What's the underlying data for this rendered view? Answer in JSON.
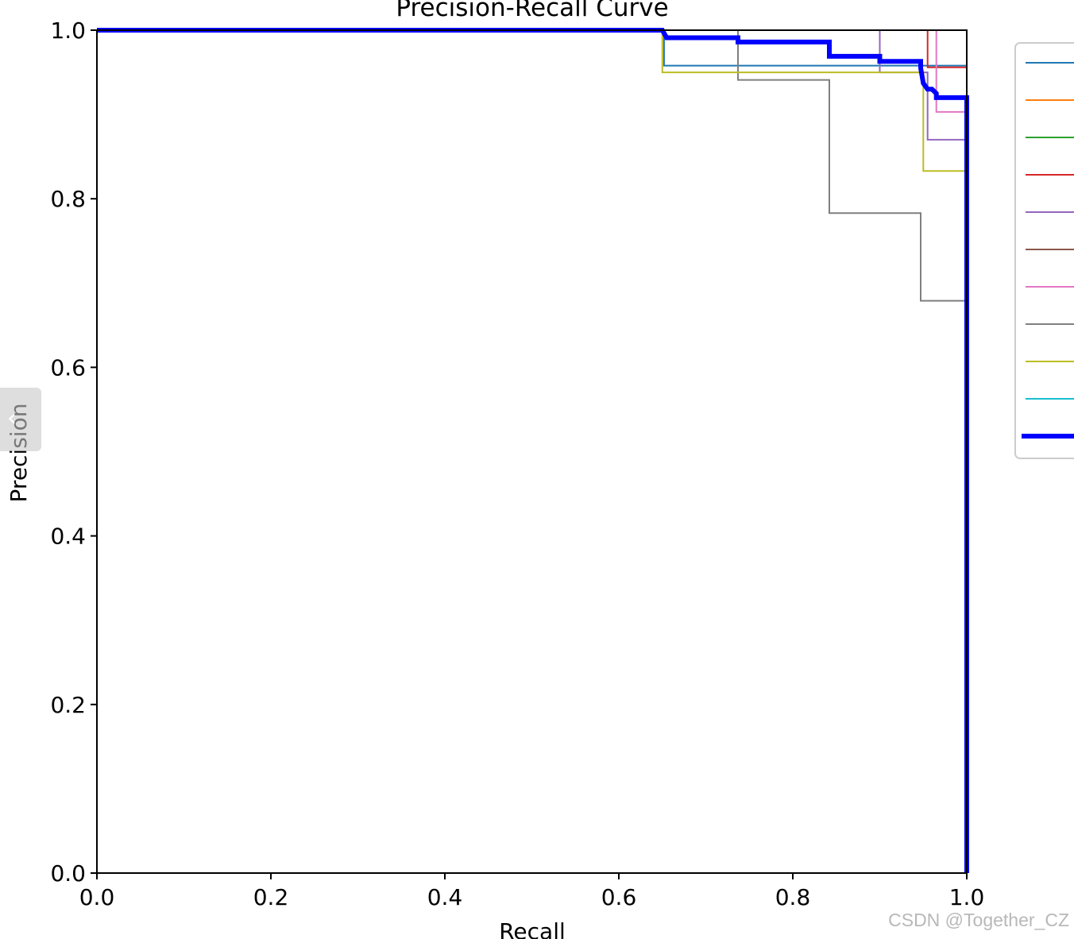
{
  "chart_data": {
    "type": "line",
    "title": "Precision-Recall Curve",
    "xlabel": "Recall",
    "ylabel": "Precision",
    "xlim": [
      0.0,
      1.0
    ],
    "ylim": [
      0.0,
      1.0
    ],
    "xticks": [
      "0.0",
      "0.2",
      "0.4",
      "0.6",
      "0.8",
      "1.0"
    ],
    "yticks": [
      "0.0",
      "0.2",
      "0.4",
      "0.6",
      "0.8",
      "1.0"
    ],
    "grid": false,
    "legend_placement": "right, partially cropped",
    "series": [
      {
        "color": "#1f77b4",
        "width": 2,
        "x": [
          0,
          0.652,
          0.652,
          1.0,
          1.0
        ],
        "y": [
          1.0,
          1.0,
          0.958,
          0.958,
          0.0
        ]
      },
      {
        "color": "#ff7f0e",
        "width": 2,
        "x": [
          0,
          1.0,
          1.0
        ],
        "y": [
          1.0,
          1.0,
          0.0
        ]
      },
      {
        "color": "#2ca02c",
        "width": 2,
        "x": [
          0,
          1.0,
          1.0
        ],
        "y": [
          1.0,
          1.0,
          0.0
        ]
      },
      {
        "color": "#d62728",
        "width": 2,
        "x": [
          0,
          0.955,
          0.955,
          1.0,
          1.0
        ],
        "y": [
          1.0,
          1.0,
          0.956,
          0.956,
          0.0
        ]
      },
      {
        "color": "#9467bd",
        "width": 2,
        "x": [
          0,
          0.9,
          0.9,
          0.955,
          0.955,
          1.0,
          1.0
        ],
        "y": [
          1.0,
          1.0,
          0.95,
          0.95,
          0.87,
          0.87,
          0.0
        ]
      },
      {
        "color": "#8c564b",
        "width": 2,
        "x": [
          0,
          1.0,
          1.0
        ],
        "y": [
          1.0,
          1.0,
          0.0
        ]
      },
      {
        "color": "#e377c2",
        "width": 2,
        "x": [
          0,
          0.965,
          0.965,
          1.0,
          1.0
        ],
        "y": [
          1.0,
          1.0,
          0.903,
          0.903,
          0.0
        ]
      },
      {
        "color": "#7f7f7f",
        "width": 2,
        "x": [
          0,
          0.737,
          0.737,
          0.842,
          0.842,
          0.947,
          0.947,
          1.0,
          1.0
        ],
        "y": [
          1.0,
          1.0,
          0.941,
          0.941,
          0.783,
          0.783,
          0.679,
          0.679,
          0.0
        ]
      },
      {
        "color": "#bcbd22",
        "width": 2,
        "x": [
          0,
          0.65,
          0.65,
          0.95,
          0.95,
          1.0,
          1.0
        ],
        "y": [
          1.0,
          1.0,
          0.95,
          0.95,
          0.833,
          0.833,
          0.0
        ]
      },
      {
        "color": "#17becf",
        "width": 2,
        "x": [
          0,
          1.0,
          1.0
        ],
        "y": [
          1.0,
          1.0,
          0.0
        ]
      },
      {
        "color": "#0000ff",
        "width": 6,
        "x": [
          0,
          0.65,
          0.655,
          0.737,
          0.737,
          0.842,
          0.842,
          0.9,
          0.9,
          0.947,
          0.947,
          0.95,
          0.955,
          0.96,
          0.965,
          0.965,
          0.97,
          1.0,
          1.0
        ],
        "y": [
          1.0,
          1.0,
          0.991,
          0.991,
          0.986,
          0.986,
          0.969,
          0.969,
          0.963,
          0.963,
          0.955,
          0.937,
          0.93,
          0.93,
          0.925,
          0.92,
          0.92,
          0.92,
          0.0
        ]
      }
    ]
  },
  "ui": {
    "sidebar_handle_icon": "chevron-left-icon",
    "sidebar_handle_glyph": "‹",
    "watermark": "CSDN @Together_CZ"
  }
}
